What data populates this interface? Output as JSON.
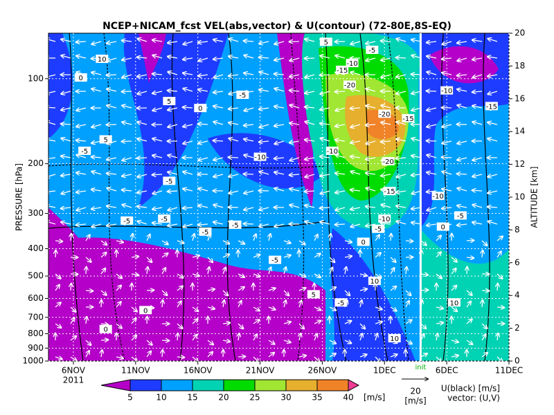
{
  "chart_data": {
    "type": "contour",
    "title": "NCEP+NICAM_fcst VEL(abs,vector) & U(contour)  (72-80E,8S-EQ)",
    "y_label": "PRESSURE [hPa]",
    "y2_label": "ALTITUDE [km]",
    "year_label": "2011",
    "xlim": [
      4,
      41
    ],
    "xticks": [
      {
        "value": 6,
        "label": "6NOV"
      },
      {
        "value": 11,
        "label": "11NOV"
      },
      {
        "value": 16,
        "label": "16NOV"
      },
      {
        "value": 21,
        "label": "21NOV"
      },
      {
        "value": 26,
        "label": "26NOV"
      },
      {
        "value": 31,
        "label": "1DEC"
      },
      {
        "value": 36,
        "label": "6DEC"
      },
      {
        "value": 41,
        "label": "11DEC"
      }
    ],
    "ylim": [
      1000,
      69
    ],
    "y_log": true,
    "yticks": [
      100,
      200,
      300,
      400,
      500,
      600,
      700,
      800,
      900,
      1000
    ],
    "y2lim": [
      0,
      20
    ],
    "y2ticks": [
      0,
      2,
      4,
      6,
      8,
      10,
      12,
      14,
      16,
      18,
      20
    ],
    "init_marker": {
      "value": 33.9,
      "label": "init"
    },
    "colorbar": {
      "levels": [
        5,
        10,
        15,
        20,
        25,
        30,
        35,
        40
      ],
      "colors": [
        "#b400c8",
        "#1e3cff",
        "#00a0ff",
        "#00d2b4",
        "#00dc00",
        "#a0e632",
        "#e6af2d",
        "#f08228",
        "#f03c96"
      ],
      "unit": "[m/s]"
    },
    "vector_legend": {
      "value": 20,
      "unit": "[m/s]"
    },
    "legend_text": [
      "U(black) [m/s]",
      "vector: (U,V)"
    ],
    "contour_labels": [
      {
        "x": 8.3,
        "p": 85,
        "value": 10
      },
      {
        "x": 6.6,
        "p": 99,
        "value": 0
      },
      {
        "x": 8.6,
        "p": 164,
        "value": 5
      },
      {
        "x": 6.9,
        "p": 180,
        "value": -5
      },
      {
        "x": 13.7,
        "p": 120,
        "value": 5
      },
      {
        "x": 16.2,
        "p": 127,
        "value": 0
      },
      {
        "x": 19.6,
        "p": 114,
        "value": -5
      },
      {
        "x": 21.0,
        "p": 189,
        "value": -10
      },
      {
        "x": 13.7,
        "p": 230,
        "value": -5
      },
      {
        "x": 10.3,
        "p": 318,
        "value": -5
      },
      {
        "x": 13.3,
        "p": 313,
        "value": -5
      },
      {
        "x": 19.0,
        "p": 329,
        "value": -5
      },
      {
        "x": 16.6,
        "p": 348,
        "value": -5
      },
      {
        "x": 22.2,
        "p": 438,
        "value": -5
      },
      {
        "x": 28.2,
        "p": 105,
        "value": -20
      },
      {
        "x": 27.6,
        "p": 93,
        "value": -15
      },
      {
        "x": 28.4,
        "p": 88,
        "value": -10
      },
      {
        "x": 30.0,
        "p": 79,
        "value": -5
      },
      {
        "x": 31.0,
        "p": 133,
        "value": -20
      },
      {
        "x": 32.9,
        "p": 138,
        "value": -15
      },
      {
        "x": 31.3,
        "p": 196,
        "value": -20
      },
      {
        "x": 26.8,
        "p": 180,
        "value": -10
      },
      {
        "x": 31.4,
        "p": 250,
        "value": -15
      },
      {
        "x": 31.0,
        "p": 313,
        "value": -10
      },
      {
        "x": 30.5,
        "p": 340,
        "value": -5
      },
      {
        "x": 29.3,
        "p": 378,
        "value": 0
      },
      {
        "x": 30.2,
        "p": 520,
        "value": 10
      },
      {
        "x": 31.8,
        "p": 830,
        "value": 10
      },
      {
        "x": 25.3,
        "p": 580,
        "value": 5
      },
      {
        "x": 11.8,
        "p": 660,
        "value": 0
      },
      {
        "x": 8.6,
        "p": 770,
        "value": 0
      },
      {
        "x": 27.5,
        "p": 620,
        "value": -5
      },
      {
        "x": 35.7,
        "p": 334,
        "value": 0
      },
      {
        "x": 35.3,
        "p": 260,
        "value": -10
      },
      {
        "x": 37.1,
        "p": 305,
        "value": -5
      },
      {
        "x": 39.6,
        "p": 125,
        "value": -15
      },
      {
        "x": 36.0,
        "p": 110,
        "value": -10
      },
      {
        "x": 36.6,
        "p": 620,
        "value": 10
      },
      {
        "x": 26.3,
        "p": 74,
        "value": 5
      }
    ]
  }
}
